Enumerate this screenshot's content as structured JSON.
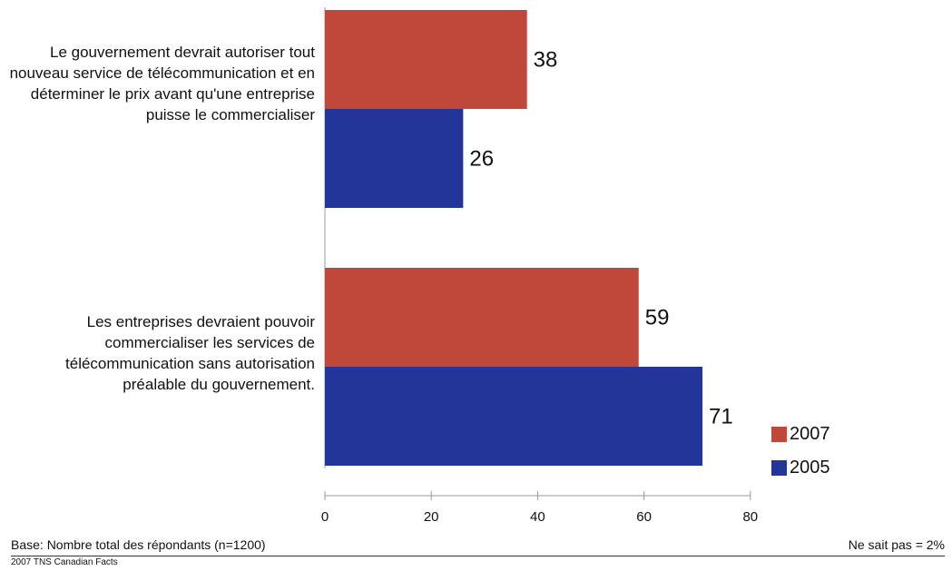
{
  "chart_data": {
    "type": "bar",
    "orientation": "horizontal",
    "categories": [
      "Le gouvernement devrait autoriser tout nouveau service de télécommunication et en déterminer le prix avant qu'une entreprise puisse le commercialiser",
      "Les entreprises devraient pouvoir commercialiser les services de télécommunication sans autorisation préalable du gouvernement."
    ],
    "series": [
      {
        "name": "2007",
        "values": [
          38,
          59
        ],
        "color": "#c0483a"
      },
      {
        "name": "2005",
        "values": [
          26,
          71
        ],
        "color": "#24359a"
      }
    ],
    "xlim": [
      0,
      80
    ],
    "xticks": [
      "0",
      "20",
      "40",
      "60",
      "80"
    ],
    "grid": false,
    "legend": "bottom-right"
  },
  "footer": {
    "base": "Base: Nombre total des répondants (n=1200)",
    "dont_know": "Ne sait pas = 2%",
    "copyright": "2007 TNS Canadian Facts"
  }
}
